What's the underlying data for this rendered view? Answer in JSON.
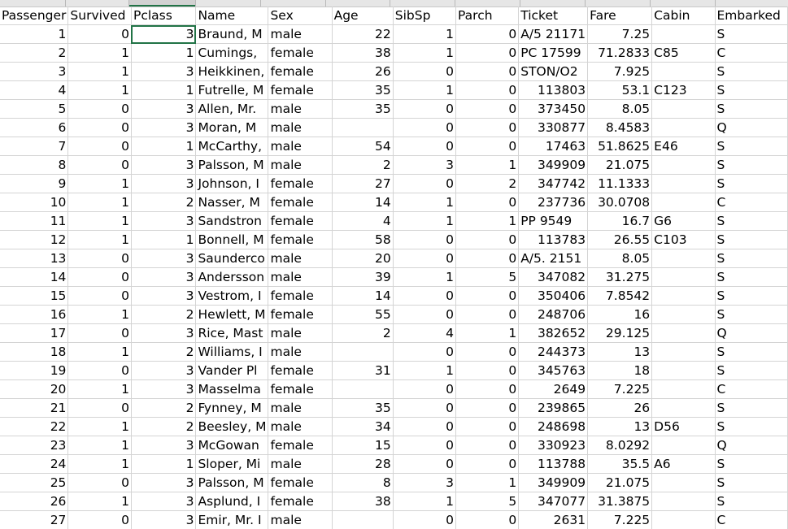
{
  "sheet": {
    "columns": [
      "PassengerId",
      "Survived",
      "Pclass",
      "Name",
      "Sex",
      "Age",
      "SibSp",
      "Parch",
      "Ticket",
      "Fare",
      "Cabin",
      "Embarked"
    ],
    "header_display": [
      "Passenger",
      "Survived",
      "Pclass",
      "Name",
      "Sex",
      "Age",
      "SibSp",
      "Parch",
      "Ticket",
      "Fare",
      "Cabin",
      "Embarked"
    ],
    "active_cell": {
      "row": 0,
      "col": 2
    },
    "rows": [
      [
        "1",
        "0",
        "3",
        "Braund, M",
        "male",
        "22",
        "1",
        "0",
        "A/5 21171",
        "7.25",
        "",
        "S"
      ],
      [
        "2",
        "1",
        "1",
        "Cumings,",
        "female",
        "38",
        "1",
        "0",
        "PC 17599",
        "71.2833",
        "C85",
        "C"
      ],
      [
        "3",
        "1",
        "3",
        "Heikkinen,",
        "female",
        "26",
        "0",
        "0",
        "STON/O2",
        "7.925",
        "",
        "S"
      ],
      [
        "4",
        "1",
        "1",
        "Futrelle, M",
        "female",
        "35",
        "1",
        "0",
        "113803",
        "53.1",
        "C123",
        "S"
      ],
      [
        "5",
        "0",
        "3",
        "Allen, Mr.",
        "male",
        "35",
        "0",
        "0",
        "373450",
        "8.05",
        "",
        "S"
      ],
      [
        "6",
        "0",
        "3",
        "Moran, M",
        "male",
        "",
        "0",
        "0",
        "330877",
        "8.4583",
        "",
        "Q"
      ],
      [
        "7",
        "0",
        "1",
        "McCarthy,",
        "male",
        "54",
        "0",
        "0",
        "17463",
        "51.8625",
        "E46",
        "S"
      ],
      [
        "8",
        "0",
        "3",
        "Palsson, M",
        "male",
        "2",
        "3",
        "1",
        "349909",
        "21.075",
        "",
        "S"
      ],
      [
        "9",
        "1",
        "3",
        "Johnson, I",
        "female",
        "27",
        "0",
        "2",
        "347742",
        "11.1333",
        "",
        "S"
      ],
      [
        "10",
        "1",
        "2",
        "Nasser, M",
        "female",
        "14",
        "1",
        "0",
        "237736",
        "30.0708",
        "",
        "C"
      ],
      [
        "11",
        "1",
        "3",
        "Sandstron",
        "female",
        "4",
        "1",
        "1",
        "PP 9549",
        "16.7",
        "G6",
        "S"
      ],
      [
        "12",
        "1",
        "1",
        "Bonnell, M",
        "female",
        "58",
        "0",
        "0",
        "113783",
        "26.55",
        "C103",
        "S"
      ],
      [
        "13",
        "0",
        "3",
        "Saunderco",
        "male",
        "20",
        "0",
        "0",
        "A/5. 2151",
        "8.05",
        "",
        "S"
      ],
      [
        "14",
        "0",
        "3",
        "Andersson",
        "male",
        "39",
        "1",
        "5",
        "347082",
        "31.275",
        "",
        "S"
      ],
      [
        "15",
        "0",
        "3",
        "Vestrom, I",
        "female",
        "14",
        "0",
        "0",
        "350406",
        "7.8542",
        "",
        "S"
      ],
      [
        "16",
        "1",
        "2",
        "Hewlett, M",
        "female",
        "55",
        "0",
        "0",
        "248706",
        "16",
        "",
        "S"
      ],
      [
        "17",
        "0",
        "3",
        "Rice, Mast",
        "male",
        "2",
        "4",
        "1",
        "382652",
        "29.125",
        "",
        "Q"
      ],
      [
        "18",
        "1",
        "2",
        "Williams, I",
        "male",
        "",
        "0",
        "0",
        "244373",
        "13",
        "",
        "S"
      ],
      [
        "19",
        "0",
        "3",
        "Vander Pl",
        "female",
        "31",
        "1",
        "0",
        "345763",
        "18",
        "",
        "S"
      ],
      [
        "20",
        "1",
        "3",
        "Masselma",
        "female",
        "",
        "0",
        "0",
        "2649",
        "7.225",
        "",
        "C"
      ],
      [
        "21",
        "0",
        "2",
        "Fynney, M",
        "male",
        "35",
        "0",
        "0",
        "239865",
        "26",
        "",
        "S"
      ],
      [
        "22",
        "1",
        "2",
        "Beesley, M",
        "male",
        "34",
        "0",
        "0",
        "248698",
        "13",
        "D56",
        "S"
      ],
      [
        "23",
        "1",
        "3",
        "McGowan",
        "female",
        "15",
        "0",
        "0",
        "330923",
        "8.0292",
        "",
        "Q"
      ],
      [
        "24",
        "1",
        "1",
        "Sloper, Mi",
        "male",
        "28",
        "0",
        "0",
        "113788",
        "35.5",
        "A6",
        "S"
      ],
      [
        "25",
        "0",
        "3",
        "Palsson, M",
        "female",
        "8",
        "3",
        "1",
        "349909",
        "21.075",
        "",
        "S"
      ],
      [
        "26",
        "1",
        "3",
        "Asplund, I",
        "female",
        "38",
        "1",
        "5",
        "347077",
        "31.3875",
        "",
        "S"
      ],
      [
        "27",
        "0",
        "3",
        "Emir, Mr. I",
        "male",
        "",
        "0",
        "0",
        "2631",
        "7.225",
        "",
        "C"
      ]
    ],
    "numeric_columns": [
      0,
      1,
      2,
      5,
      6,
      7,
      9
    ]
  }
}
